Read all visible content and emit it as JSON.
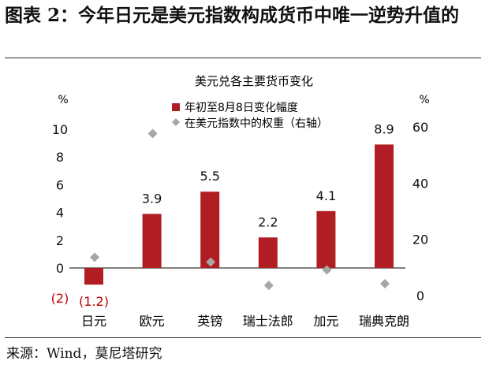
{
  "figure_title": "图表 2：今年日元是美元指数构成货币中唯一逆势升值的",
  "source_note": "来源：Wind，莫尼塔研究",
  "colors": {
    "bar": "#b01e23",
    "marker": "#a6a6a6",
    "negative_label": "#c00000",
    "text": "#111111"
  },
  "chart_data": {
    "type": "bar",
    "title": "美元兑各主要货币变化",
    "categories": [
      "日元",
      "欧元",
      "英镑",
      "瑞士法郎",
      "加元",
      "瑞典克朗"
    ],
    "series": [
      {
        "name": "年初至8月8日变化幅度",
        "type": "bar",
        "axis": "left",
        "values": [
          -1.2,
          3.9,
          5.5,
          2.2,
          4.1,
          8.9
        ]
      },
      {
        "name": "在美元指数中的权重（右轴）",
        "type": "scatter",
        "axis": "right",
        "marker": "diamond",
        "values": [
          13.6,
          57.6,
          11.9,
          3.6,
          9.1,
          4.2
        ]
      }
    ],
    "data_labels": [
      "(1.2)",
      "3.9",
      "5.5",
      "2.2",
      "4.1",
      "8.9"
    ],
    "y_left": {
      "unit": "%",
      "ylim": [
        -2,
        10
      ],
      "ticks": [
        -2,
        0,
        2,
        4,
        6,
        8,
        10
      ],
      "tick_labels": [
        "(2)",
        "0",
        "2",
        "4",
        "6",
        "8",
        "10"
      ]
    },
    "y_right": {
      "unit": "%",
      "ylim": [
        0,
        60
      ],
      "ticks": [
        0,
        20,
        40,
        60
      ],
      "tick_labels": [
        "0",
        "20",
        "40",
        "60"
      ]
    },
    "legend_position": "top-right",
    "grid": false
  }
}
